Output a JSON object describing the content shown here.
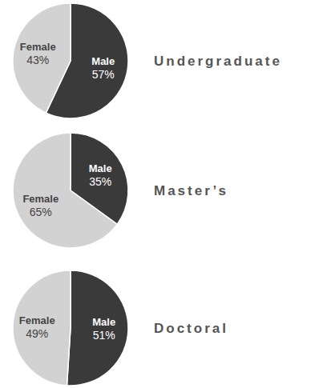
{
  "chart_data": [
    {
      "type": "pie",
      "title": "Undergraduate",
      "categories": [
        "Male",
        "Female"
      ],
      "values": [
        57,
        43
      ],
      "value_labels": [
        "57%",
        "43%"
      ],
      "colors": [
        "#3a3a3a",
        "#d2d2d2"
      ],
      "data_labels": true
    },
    {
      "type": "pie",
      "title": "Master’s",
      "categories": [
        "Male",
        "Female"
      ],
      "values": [
        35,
        65
      ],
      "value_labels": [
        "35%",
        "65%"
      ],
      "colors": [
        "#3a3a3a",
        "#d2d2d2"
      ],
      "data_labels": true
    },
    {
      "type": "pie",
      "title": "Doctoral",
      "categories": [
        "Male",
        "Female"
      ],
      "values": [
        51,
        49
      ],
      "value_labels": [
        "51%",
        "49%"
      ],
      "colors": [
        "#3a3a3a",
        "#d2d2d2"
      ],
      "data_labels": true
    }
  ]
}
